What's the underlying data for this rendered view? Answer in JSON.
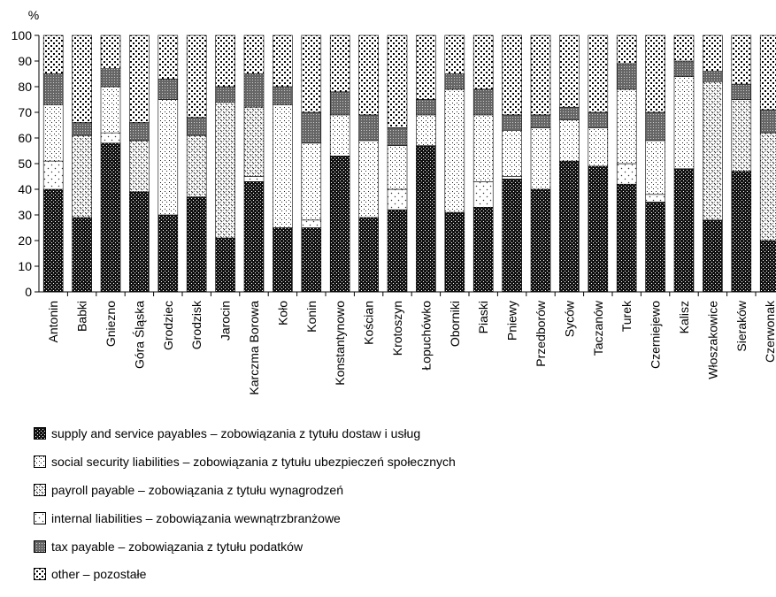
{
  "chart_data": {
    "type": "bar",
    "stacked": true,
    "ylabel": "%",
    "ylim": [
      0,
      100
    ],
    "yticks": [
      0,
      10,
      20,
      30,
      40,
      50,
      60,
      70,
      80,
      90,
      100
    ],
    "grid": false,
    "legend_position": "bottom",
    "categories": [
      "Antonin",
      "Babki",
      "Gniezno",
      "Góra Śląska",
      "Grodziec",
      "Grodzisk",
      "Jarocin",
      "Karczma Borowa",
      "Koło",
      "Konin",
      "Konstantynowo",
      "Kościan",
      "Krotoszyn",
      "Łopuchówko",
      "Oborniki",
      "Piaski",
      "Pniewy",
      "Przedborów",
      "Syców",
      "Taczanów",
      "Turek",
      "Czerniejewo",
      "Kalisz",
      "Włoszakowice",
      "Sieraków",
      "Czerwonak"
    ],
    "series": [
      {
        "name": "supply and service payables – zobowiązania z tytułu dostaw i usług",
        "pattern": "dense-dots",
        "values": [
          40,
          29,
          58,
          39,
          30,
          37,
          21,
          43,
          25,
          25,
          53,
          29,
          32,
          57,
          31,
          33,
          44,
          40,
          51,
          49,
          42,
          35,
          48,
          28,
          47,
          20
        ]
      },
      {
        "name": "internal liabilities – zobowiązania wewnątrzbranżowe",
        "pattern": "sparse-ticks",
        "values": [
          11,
          0,
          4,
          0,
          0,
          0,
          0,
          2,
          0,
          3,
          0,
          0,
          8,
          0,
          0,
          10,
          1,
          0,
          0,
          0,
          8,
          3,
          0,
          0,
          0,
          0
        ]
      },
      {
        "name": "social security liabilities – zobowiązania z tytułu ubezpieczeń społecznych",
        "pattern": "light-dots",
        "values": [
          22,
          0,
          18,
          0,
          45,
          0,
          0,
          0,
          48,
          30,
          16,
          30,
          17,
          12,
          48,
          26,
          18,
          24,
          16,
          15,
          29,
          21,
          36,
          0,
          0,
          0
        ]
      },
      {
        "name": "payroll payable – zobowiązania z tytułu wynagrodzeń",
        "pattern": "diagonal-hatch",
        "values": [
          0,
          32,
          0,
          20,
          0,
          24,
          53,
          27,
          0,
          0,
          0,
          0,
          0,
          0,
          0,
          0,
          0,
          0,
          0,
          0,
          0,
          0,
          0,
          54,
          28,
          42
        ]
      },
      {
        "name": "tax payable – zobowiązania z tytułu podatków",
        "pattern": "grid",
        "values": [
          12,
          5,
          7,
          7,
          8,
          7,
          6,
          13,
          7,
          12,
          9,
          10,
          7,
          6,
          6,
          10,
          6,
          5,
          5,
          6,
          10,
          11,
          6,
          4,
          6,
          9
        ]
      },
      {
        "name": "other – pozostałe",
        "pattern": "sparse-dots",
        "values": [
          15,
          34,
          13,
          34,
          17,
          32,
          20,
          15,
          20,
          30,
          22,
          31,
          36,
          25,
          15,
          21,
          31,
          31,
          28,
          30,
          11,
          30,
          10,
          14,
          19,
          29
        ]
      }
    ],
    "legend": [
      {
        "label": "supply and service payables – zobowiązania z tytułu dostaw i usług",
        "pattern": "dense-dots"
      },
      {
        "label": "social security liabilities – zobowiązania z tytułu ubezpieczeń społecznych",
        "pattern": "light-dots"
      },
      {
        "label": "payroll payable – zobowiązania z tytułu wynagrodzeń",
        "pattern": "diagonal-hatch"
      },
      {
        "label": "internal liabilities – zobowiązania wewnątrzbranżowe",
        "pattern": "sparse-ticks"
      },
      {
        "label": "tax payable – zobowiązania z tytułu podatków",
        "pattern": "grid"
      },
      {
        "label": "other – pozostałe",
        "pattern": "sparse-dots"
      }
    ]
  }
}
